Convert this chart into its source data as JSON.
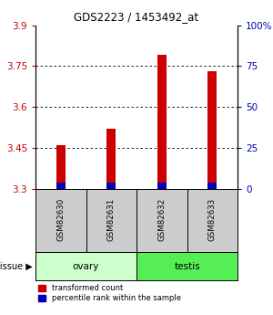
{
  "title": "GDS2223 / 1453492_at",
  "samples": [
    "GSM82630",
    "GSM82631",
    "GSM82632",
    "GSM82633"
  ],
  "transformed_counts": [
    3.46,
    3.52,
    3.79,
    3.73
  ],
  "y_min": 3.3,
  "y_max": 3.9,
  "y_ticks": [
    3.3,
    3.45,
    3.6,
    3.75,
    3.9
  ],
  "y2_ticks": [
    0,
    25,
    50,
    75,
    100
  ],
  "y2_tick_labels": [
    "0",
    "25",
    "50",
    "75",
    "100%"
  ],
  "bar_width": 0.18,
  "red_color": "#cc0000",
  "blue_color": "#0000bb",
  "bar_base": 3.3,
  "blue_bar_height": 0.022,
  "legend_red": "transformed count",
  "legend_blue": "percentile rank within the sample",
  "tick_color_left": "#cc0000",
  "tick_color_right": "#0000bb",
  "sample_box_color": "#cccccc",
  "ovary_color": "#ccffcc",
  "testis_color": "#55ee55",
  "background_color": "#ffffff"
}
